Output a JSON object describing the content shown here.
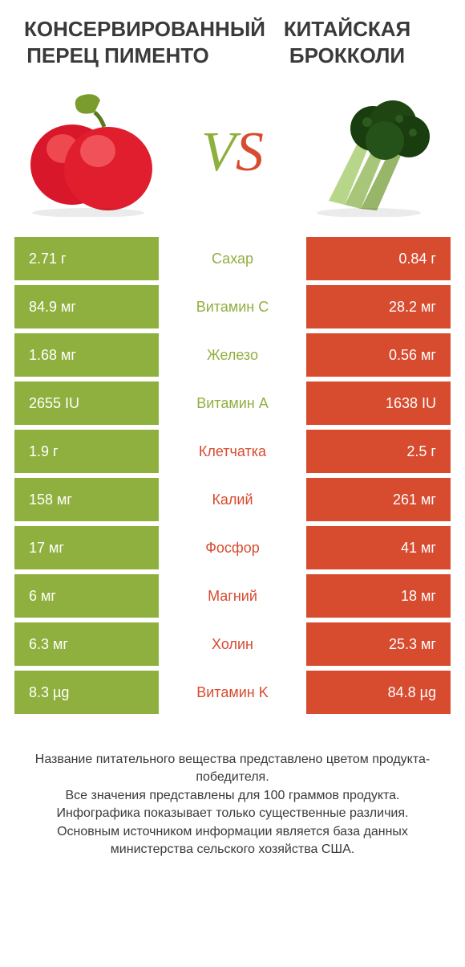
{
  "colors": {
    "green": "#8fb03e",
    "red": "#d74b2f",
    "text": "#3a3a3a",
    "white": "#ffffff"
  },
  "header": {
    "left_title": "КОНСЕРВИРОВАННЫЙ ПЕРЕЦ ПИМЕНТО",
    "right_title": "КИТАЙСКАЯ БРОККОЛИ"
  },
  "vs": {
    "v": "V",
    "s": "S"
  },
  "rows": [
    {
      "left": "2.71 г",
      "label": "Сахар",
      "right": "0.84 г",
      "winner": "left"
    },
    {
      "left": "84.9 мг",
      "label": "Витамин C",
      "right": "28.2 мг",
      "winner": "left"
    },
    {
      "left": "1.68 мг",
      "label": "Железо",
      "right": "0.56 мг",
      "winner": "left"
    },
    {
      "left": "2655 IU",
      "label": "Витамин A",
      "right": "1638 IU",
      "winner": "left"
    },
    {
      "left": "1.9 г",
      "label": "Клетчатка",
      "right": "2.5 г",
      "winner": "right"
    },
    {
      "left": "158 мг",
      "label": "Калий",
      "right": "261 мг",
      "winner": "right"
    },
    {
      "left": "17 мг",
      "label": "Фосфор",
      "right": "41 мг",
      "winner": "right"
    },
    {
      "left": "6 мг",
      "label": "Магний",
      "right": "18 мг",
      "winner": "right"
    },
    {
      "left": "6.3 мг",
      "label": "Холин",
      "right": "25.3 мг",
      "winner": "right"
    },
    {
      "left": "8.3 µg",
      "label": "Витамин K",
      "right": "84.8 µg",
      "winner": "right"
    }
  ],
  "footer": {
    "line1": "Название питательного вещества представлено цветом продукта-победителя.",
    "line2": "Все значения представлены для 100 граммов продукта.",
    "line3": "Инфографика показывает только существенные различия.",
    "line4": "Основным источником информации является база данных министерства сельского хозяйства США."
  }
}
